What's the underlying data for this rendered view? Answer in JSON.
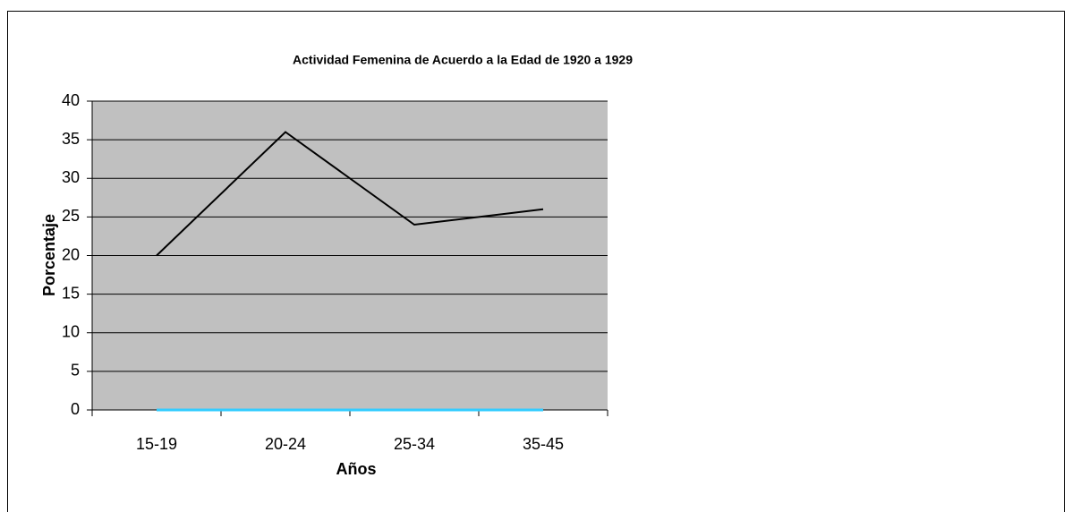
{
  "chart_data": {
    "type": "line",
    "title": "Actividad Femenina de Acuerdo a la Edad de 1920 a 1929",
    "x_label": "Años",
    "y_label": "Porcentaje",
    "categories": [
      "15-19",
      "20-24",
      "25-34",
      "35-45"
    ],
    "series": [
      {
        "color": "#000000",
        "values": [
          20,
          36,
          24,
          26
        ]
      },
      {
        "color": "#33ccff",
        "values": [
          0,
          0,
          0,
          0
        ]
      }
    ],
    "ylim": [
      0,
      40
    ],
    "yticks": [
      0,
      5,
      10,
      15,
      20,
      25,
      30,
      35,
      40
    ],
    "grid": true
  }
}
